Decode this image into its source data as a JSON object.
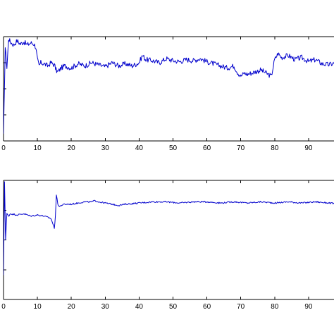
{
  "chart_data": [
    {
      "type": "line",
      "title": "",
      "xlabel": "",
      "ylabel": "",
      "xlim": [
        0,
        100
      ],
      "xticks": [
        0,
        10,
        20,
        30,
        40,
        50,
        60,
        70,
        80,
        90
      ],
      "color": "#0000cc",
      "grid": false,
      "series": [
        {
          "x": [
            0,
            0.5,
            1,
            1.5,
            2,
            3,
            4,
            5,
            6,
            7,
            8,
            9,
            9.5,
            10,
            10.5,
            11,
            12,
            13,
            14,
            15,
            15.5,
            16,
            17,
            18,
            20,
            22,
            24,
            26,
            28,
            30,
            32,
            34,
            36,
            38,
            40,
            41,
            42,
            44,
            46,
            48,
            50,
            52,
            54,
            56,
            58,
            60,
            62,
            64,
            66,
            68,
            69,
            70,
            71,
            72,
            74,
            76,
            78,
            79,
            80,
            81,
            82,
            84,
            86,
            88,
            90,
            92,
            94,
            96,
            98,
            100
          ],
          "y": [
            0.05,
            0.9,
            0.7,
            0.98,
            0.95,
            0.92,
            0.96,
            0.93,
            0.95,
            0.92,
            0.94,
            0.93,
            0.9,
            0.78,
            0.72,
            0.75,
            0.74,
            0.72,
            0.75,
            0.73,
            0.68,
            0.66,
            0.7,
            0.72,
            0.7,
            0.74,
            0.72,
            0.75,
            0.73,
            0.71,
            0.75,
            0.72,
            0.74,
            0.72,
            0.75,
            0.82,
            0.78,
            0.77,
            0.75,
            0.79,
            0.77,
            0.76,
            0.78,
            0.77,
            0.79,
            0.76,
            0.74,
            0.72,
            0.7,
            0.72,
            0.66,
            0.62,
            0.65,
            0.64,
            0.66,
            0.68,
            0.64,
            0.62,
            0.78,
            0.84,
            0.8,
            0.82,
            0.78,
            0.8,
            0.76,
            0.78,
            0.74,
            0.73,
            0.75,
            0.72
          ]
        }
      ]
    },
    {
      "type": "line",
      "title": "",
      "xlabel": "",
      "ylabel": "",
      "xlim": [
        0,
        100
      ],
      "xticks": [
        0,
        10,
        20,
        30,
        40,
        50,
        60,
        70,
        80,
        90
      ],
      "color": "#0000cc",
      "grid": false,
      "series": [
        {
          "x": [
            0,
            0.3,
            0.6,
            1,
            1.5,
            2,
            4,
            6,
            8,
            10,
            12,
            14,
            15,
            15.3,
            15.6,
            16,
            16.5,
            17,
            18,
            20,
            22,
            24,
            26,
            27,
            28,
            30,
            32,
            34,
            36,
            40,
            44,
            48,
            52,
            56,
            60,
            64,
            68,
            72,
            76,
            80,
            84,
            88,
            92,
            96,
            100
          ],
          "y": [
            0.2,
            0.99,
            0.5,
            0.72,
            0.7,
            0.72,
            0.71,
            0.72,
            0.7,
            0.71,
            0.7,
            0.68,
            0.6,
            0.7,
            0.88,
            0.8,
            0.78,
            0.79,
            0.8,
            0.8,
            0.81,
            0.82,
            0.82,
            0.83,
            0.82,
            0.81,
            0.8,
            0.79,
            0.8,
            0.81,
            0.82,
            0.82,
            0.81,
            0.82,
            0.82,
            0.81,
            0.82,
            0.81,
            0.82,
            0.81,
            0.82,
            0.81,
            0.82,
            0.81,
            0.8
          ]
        }
      ]
    }
  ]
}
